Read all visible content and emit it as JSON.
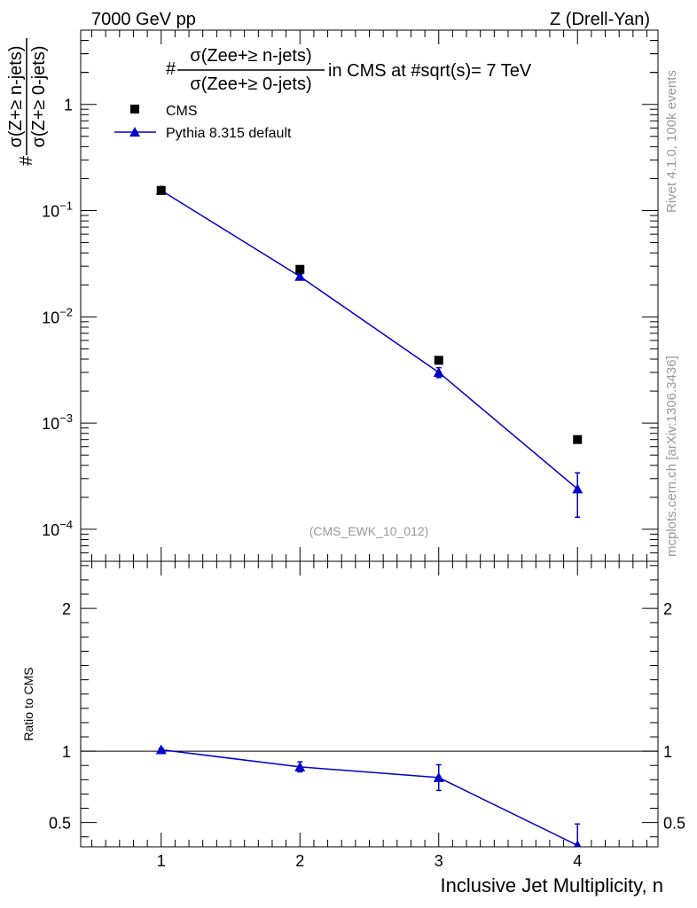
{
  "header": {
    "left": "7000 GeV pp",
    "right": "Z (Drell-Yan)"
  },
  "title": {
    "prefix": "#",
    "numerator": "σ(Zee+≥ n-jets)",
    "denominator": "σ(Zee+≥ 0-jets)",
    "suffix": "in CMS at #sqrt(s)= 7 TeV"
  },
  "ylabel": {
    "prefix": "#",
    "numerator": "σ(Z+≥ n-jets)",
    "denominator": "σ(Z+≥ 0-jets)"
  },
  "side_text": {
    "rivet": "Rivet 4.1.0,  100k events",
    "mcplots": "mcplots.cern.ch [arXiv:1306.3436]"
  },
  "analysis_tag": "(CMS_EWK_10_012)",
  "legend": {
    "data_label": "CMS",
    "mc_label": "Pythia 8.315 default"
  },
  "colors": {
    "data": "#000000",
    "mc": "#0000cc",
    "watermark": "#999999"
  },
  "chart_data": [
    {
      "type": "scatter",
      "panel": "main",
      "yscale": "log",
      "xlim": [
        0.42,
        4.58
      ],
      "ylim": [
        5e-05,
        5
      ],
      "x_ticks": [
        "1",
        "2",
        "3",
        "4"
      ],
      "y_tick_labels": [
        {
          "value": 1,
          "label": "1"
        },
        {
          "value": 0.1,
          "base": "10",
          "exp": "−1"
        },
        {
          "value": 0.01,
          "base": "10",
          "exp": "−2"
        },
        {
          "value": 0.001,
          "base": "10",
          "exp": "−3"
        },
        {
          "value": 0.0001,
          "base": "10",
          "exp": "−4"
        }
      ],
      "series": [
        {
          "name": "CMS",
          "marker": "square",
          "x": [
            1,
            2,
            3,
            4
          ],
          "y": [
            0.155,
            0.028,
            0.0039,
            0.0007
          ]
        },
        {
          "name": "Pythia 8.315 default",
          "marker": "triangle",
          "line": true,
          "x": [
            1,
            2,
            3,
            4
          ],
          "y": [
            0.155,
            0.024,
            0.003,
            0.00024
          ],
          "err_low": [
            0.003,
            0.0012,
            0.00032,
            0.00011
          ],
          "err_high": [
            0.003,
            0.0012,
            0.00032,
            0.0001
          ]
        }
      ]
    },
    {
      "type": "line",
      "panel": "ratio",
      "ylabel": "Ratio to CMS",
      "xlabel": "Inclusive Jet Multiplicity, n",
      "xlim": [
        0.42,
        4.58
      ],
      "ylim": [
        0.33,
        2.33
      ],
      "y_ticks": [
        "0.5",
        "1",
        "2"
      ],
      "reference_line": 1,
      "series": [
        {
          "name": "Pythia 8.315 default / CMS",
          "marker": "triangle",
          "x": [
            1,
            2,
            3,
            4
          ],
          "y": [
            1.01,
            0.89,
            0.815,
            0.34
          ],
          "err": [
            0.01,
            0.035,
            0.09,
            0.15
          ]
        }
      ]
    }
  ]
}
